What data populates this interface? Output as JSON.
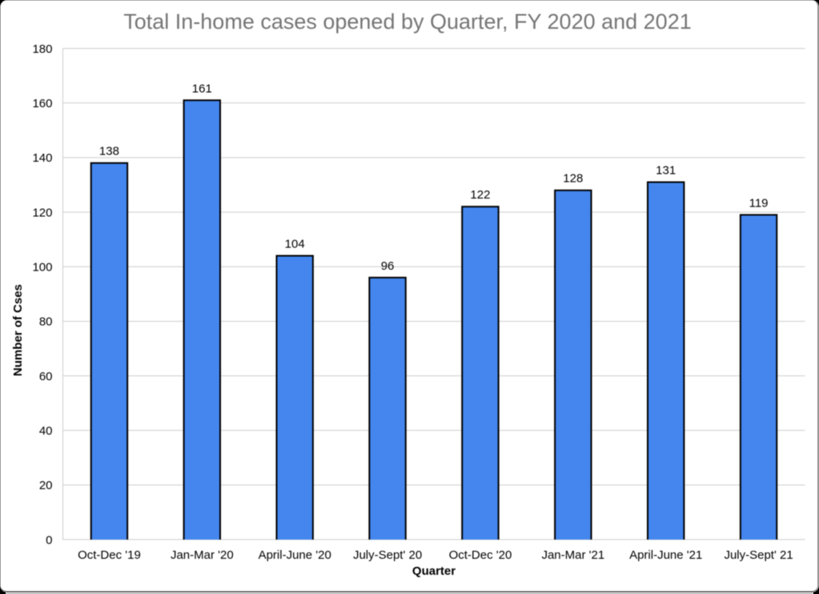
{
  "chart_data": {
    "type": "bar",
    "title": "Total In-home cases opened by Quarter, FY 2020 and 2021",
    "categories": [
      "Oct-Dec '19",
      "Jan-Mar '20",
      "April-June '20",
      "July-Sept' 20",
      "Oct-Dec '20",
      "Jan-Mar '21",
      "April-June '21",
      "July-Sept' 21"
    ],
    "values": [
      138,
      161,
      104,
      96,
      122,
      128,
      131,
      119
    ],
    "data_labels_shown": true,
    "xlabel": "Quarter",
    "ylabel": "Number of Cses",
    "ylim": [
      0,
      180
    ],
    "yticks": [
      0,
      20,
      40,
      60,
      80,
      100,
      120,
      140,
      160,
      180
    ],
    "grid": "horizontal",
    "legend": "none",
    "colors": {
      "bar_fill": "#4486ee",
      "bar_border": "#000000",
      "gridline": "#cccccc",
      "axis_line": "#cccccc",
      "title_text": "#757575",
      "label_text": "#000000",
      "plot_background": "#ffffff"
    }
  }
}
